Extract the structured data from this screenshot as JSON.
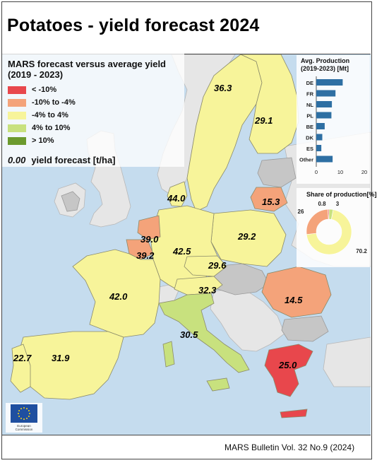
{
  "title": "Potatoes - yield forecast 2024",
  "footer": "MARS Bulletin Vol. 32 No.9 (2024)",
  "legend": {
    "title_line1": "MARS forecast versus average yield",
    "title_line2": "(2019 - 2023)",
    "classes": [
      {
        "label": "< -10%",
        "color": "#e8474c"
      },
      {
        "label": "-10% to -4%",
        "color": "#f4a37a"
      },
      {
        "label": "-4% to 4%",
        "color": "#f7f49a"
      },
      {
        "label": "4% to 10%",
        "color": "#c8e17e"
      },
      {
        "label": "> 10%",
        "color": "#6c9a2e"
      }
    ],
    "unit_sample": "0.00",
    "unit_label": "yield forecast [t/ha]"
  },
  "map_values": {
    "SE": "36.3",
    "FI": "29.1",
    "DK": "44.0",
    "LT": "15.3",
    "NL": "39.0",
    "BE": "39.2",
    "DE": "42.5",
    "PL": "29.2",
    "CZ": "29.6",
    "AT": "32.3",
    "FR": "42.0",
    "RO": "14.5",
    "IT": "30.5",
    "EL": "25.0",
    "PT": "22.7",
    "ES": "31.9"
  },
  "production_chart": {
    "title_line1": "Avg. Production",
    "title_line2": "(2019-2023) [Mt]",
    "categories": [
      "DE",
      "FR",
      "NL",
      "PL",
      "BE",
      "DK",
      "ES",
      "Other"
    ],
    "values": [
      11,
      8,
      6.5,
      6.3,
      3.5,
      2.5,
      2.1,
      6.8
    ],
    "xlim": [
      0,
      20
    ],
    "ticks": [
      "0",
      "10",
      "20"
    ],
    "bar_color": "#2e6fa3"
  },
  "share_chart": {
    "title": "Share of production[%]",
    "slices": [
      {
        "value": 70.2,
        "label": "70.2",
        "color": "#f7f49a"
      },
      {
        "value": 26,
        "label": "26",
        "color": "#f4a37a"
      },
      {
        "value": 0.8,
        "label": "0.8",
        "color": "#e8474c"
      },
      {
        "value": 3,
        "label": "3",
        "color": "#c8e17e"
      }
    ]
  },
  "logo": {
    "caption_line1": "European",
    "caption_line2": "Commission",
    "flag_color": "#1f4fa0",
    "star_color": "#f7d117"
  }
}
